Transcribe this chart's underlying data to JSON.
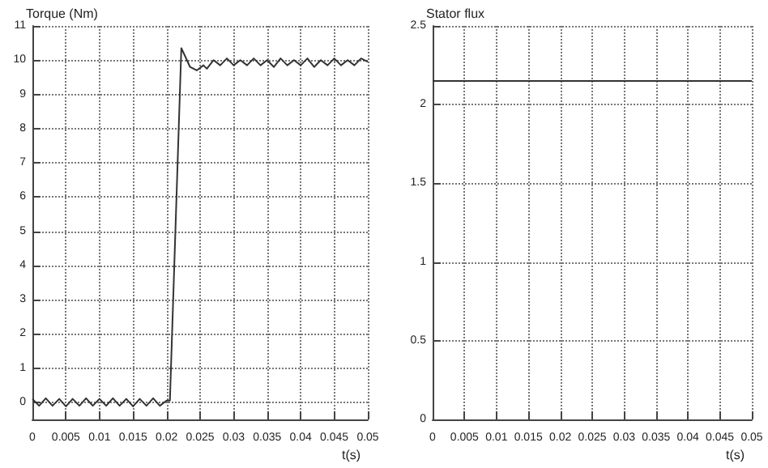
{
  "chart_data": [
    {
      "type": "line",
      "ylabel": "Torque (Nm)",
      "xlabel": "t(s)",
      "xlim": [
        0,
        0.05
      ],
      "xticks": [
        0,
        0.005,
        0.01,
        0.015,
        0.02,
        0.025,
        0.03,
        0.035,
        0.04,
        0.045,
        0.05
      ],
      "ylim": [
        -0.5,
        11
      ],
      "yticks": [
        0,
        1,
        2,
        3,
        4,
        5,
        6,
        7,
        8,
        9,
        10,
        11
      ],
      "grid": true,
      "marker": "none",
      "line_style": "solid",
      "series": [
        {
          "color": "#333333",
          "x": [
            0,
            0.001,
            0.002,
            0.003,
            0.004,
            0.005,
            0.006,
            0.007,
            0.008,
            0.009,
            0.01,
            0.011,
            0.012,
            0.013,
            0.014,
            0.015,
            0.016,
            0.017,
            0.018,
            0.019,
            0.02,
            0.0205,
            0.0222,
            0.0228,
            0.0235,
            0.0245,
            0.0255,
            0.026,
            0.027,
            0.028,
            0.029,
            0.03,
            0.031,
            0.032,
            0.033,
            0.034,
            0.035,
            0.036,
            0.037,
            0.038,
            0.039,
            0.04,
            0.041,
            0.042,
            0.043,
            0.044,
            0.045,
            0.046,
            0.047,
            0.048,
            0.049,
            0.05
          ],
          "values": [
            0.1,
            -0.1,
            0.12,
            -0.1,
            0.1,
            -0.12,
            0.1,
            -0.1,
            0.12,
            -0.1,
            0.1,
            -0.1,
            0.12,
            -0.1,
            0.1,
            -0.12,
            0.1,
            -0.1,
            0.12,
            -0.1,
            0.05,
            0.05,
            10.35,
            10.1,
            9.8,
            9.7,
            9.85,
            9.75,
            10.0,
            9.85,
            10.05,
            9.85,
            10.0,
            9.85,
            10.05,
            9.85,
            10.0,
            9.8,
            10.05,
            9.85,
            10.0,
            9.85,
            10.05,
            9.8,
            10.0,
            9.85,
            10.05,
            9.85,
            10.0,
            9.85,
            10.05,
            9.95
          ]
        }
      ]
    },
    {
      "type": "line",
      "ylabel": "Stator flux",
      "xlabel": "t(s)",
      "xlim": [
        0,
        0.05
      ],
      "xticks": [
        0,
        0.005,
        0.01,
        0.015,
        0.02,
        0.025,
        0.03,
        0.035,
        0.04,
        0.045,
        0.05
      ],
      "ylim": [
        0,
        2.5
      ],
      "yticks": [
        0,
        0.5,
        1,
        1.5,
        2,
        2.5
      ],
      "grid": true,
      "marker": "none",
      "line_style": "solid",
      "series": [
        {
          "color": "#333333",
          "x": [
            0,
            0.01,
            0.02,
            0.03,
            0.04,
            0.05
          ],
          "values": [
            2.15,
            2.15,
            2.15,
            2.15,
            2.15,
            2.15
          ]
        }
      ]
    }
  ]
}
